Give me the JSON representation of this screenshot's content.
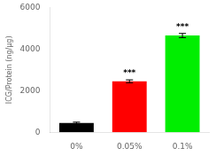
{
  "chart_data": {
    "type": "bar",
    "categories": [
      "0%",
      "0.05%",
      "0.1%"
    ],
    "values": [
      450,
      2450,
      4650
    ],
    "errors": [
      35,
      70,
      100
    ],
    "colors": [
      "#000000",
      "#ff0000",
      "#00ee00"
    ],
    "ylabel": "ICG/Protein (ng/μg)",
    "ylim": [
      0,
      6000
    ],
    "yticks": [
      0,
      2000,
      4000,
      6000
    ],
    "annotations": [
      {
        "x": "0.05%",
        "text": "***"
      },
      {
        "x": "0.1%",
        "text": "***"
      }
    ],
    "grid": false
  }
}
